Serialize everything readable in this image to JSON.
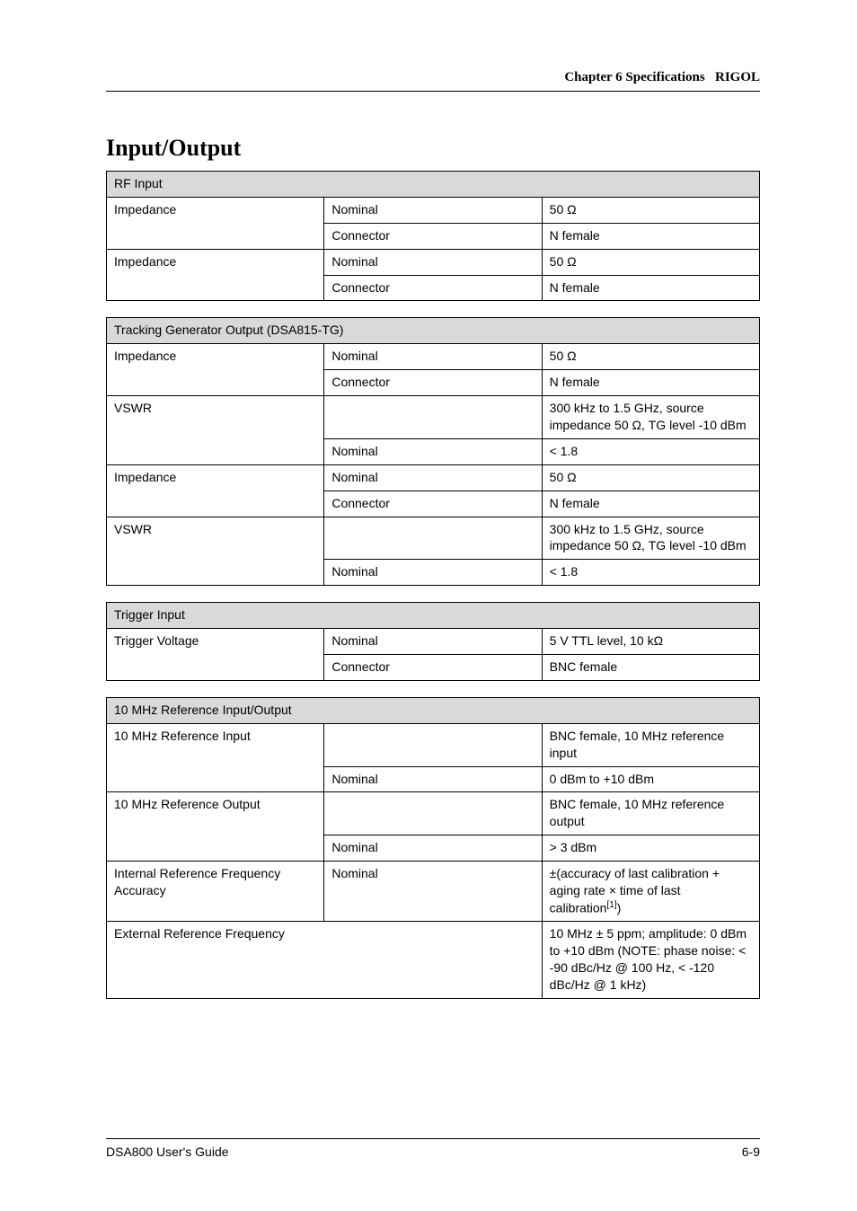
{
  "header": {
    "brand": "RIGOL",
    "chapter": "Chapter 6 Specifications"
  },
  "section_title": "Input/Output",
  "tables": {
    "rf_input": {
      "title": "RF Input",
      "rows": [
        {
          "label": "Impedance",
          "sub": "Nominal",
          "value_html": "50 Ω"
        },
        {
          "label": "",
          "sub": "Connector",
          "value_html": "N female"
        },
        {
          "label": "Impedance",
          "sub": "Nominal",
          "value_html": "50 Ω"
        },
        {
          "label": "",
          "sub": "Connector",
          "value_html": "N female"
        }
      ]
    },
    "tg_output": {
      "title": "Tracking Generator Output (DSA815-TG)",
      "rows": [
        {
          "label": "Impedance",
          "sub": "Nominal",
          "value_html": "50 Ω"
        },
        {
          "label": "",
          "sub": "Connector",
          "value_html": "N female"
        },
        {
          "label": "VSWR",
          "sub": "",
          "value_html": "300 kHz to 1.5 GHz, source impedance 50 Ω, TG level -10 dBm"
        },
        {
          "label": "",
          "sub": "Nominal",
          "value_html": "&lt; 1.8"
        },
        {
          "label": "Impedance",
          "sub": "Nominal",
          "value_html": "50 Ω"
        },
        {
          "label": "",
          "sub": "Connector",
          "value_html": "N female"
        },
        {
          "label": "VSWR",
          "sub": "",
          "value_html": "300 kHz to 1.5 GHz, source impedance 50 Ω, TG level -10 dBm"
        },
        {
          "label": "",
          "sub": "Nominal",
          "value_html": "&lt; 1.8"
        }
      ]
    },
    "trigger": {
      "title": "Trigger Input",
      "rows": [
        {
          "label": "Trigger Voltage",
          "sub": "Nominal",
          "value_html": "5 V TTL level, 10 kΩ"
        },
        {
          "label": "",
          "sub": "Connector",
          "value_html": "BNC female"
        }
      ]
    },
    "ref": {
      "title": "10 MHz Reference Input/Output",
      "rows": [
        {
          "label": "10 MHz Reference Input",
          "sub": "",
          "value_html": "BNC female, 10 MHz reference input"
        },
        {
          "label": "",
          "sub": "Nominal",
          "value_html": "0 dBm to +10 dBm"
        },
        {
          "label": "10 MHz Reference Output",
          "sub": "",
          "value_html": "BNC female, 10 MHz reference output"
        },
        {
          "label": "",
          "sub": "Nominal",
          "value_html": "&gt; 3 dBm"
        },
        {
          "label": "Internal Reference Frequency Accuracy",
          "sub": "Nominal",
          "value_html": "±(accuracy of last calibration + aging rate × time of last calibration<span class=\"super\">[1]</span>)"
        },
        {
          "label": "External Reference Frequency",
          "sub": "",
          "value_html": "10 MHz ± 5 ppm; amplitude: 0 dBm to +10 dBm (NOTE: phase noise: &lt; -90 dBc/Hz @ 100 Hz, &lt; -120 dBc/Hz @ 1 kHz)"
        }
      ]
    }
  },
  "footer": {
    "left": "DSA800 User's Guide",
    "right": "6-9"
  }
}
